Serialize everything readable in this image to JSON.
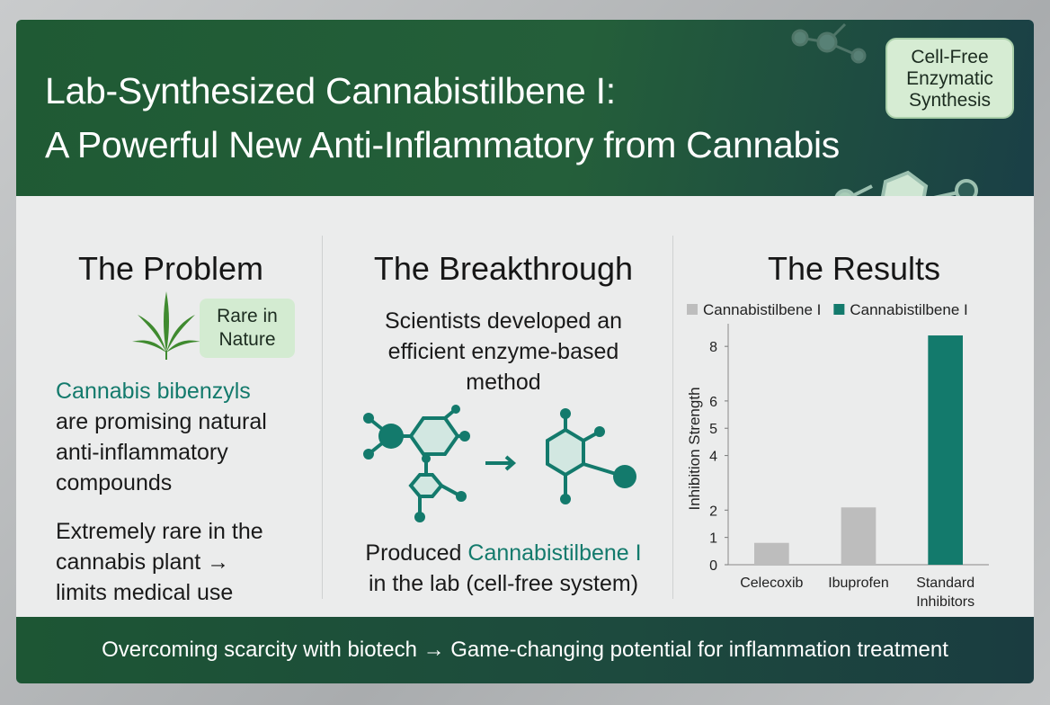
{
  "header": {
    "title_line1": "Lab-Synthesized Cannabistilbene I:",
    "title_line2": "A Powerful New Anti-Inflammatory from Cannabis",
    "badge": [
      "Cell-Free",
      "Enzymatic",
      "Synthesis"
    ]
  },
  "problem": {
    "heading": "The Problem",
    "tag": [
      "Rare in",
      "Nature"
    ],
    "highlight": "Cannabis bibenzyls",
    "lines": [
      "are promising natural",
      "anti-inflammatory",
      "compounds"
    ],
    "lines2": [
      "Extremely rare in the",
      "cannabis plant →",
      "limits medical use"
    ]
  },
  "breakthrough": {
    "heading": "The Breakthrough",
    "lines": [
      "Scientists developed an",
      "efficient enzyme-based",
      "method"
    ],
    "result_prefix": "Produced",
    "result_highlight": "Cannabistilbene I",
    "result_line2": "in the lab (cell-free system)"
  },
  "results": {
    "heading": "The Results"
  },
  "chart_data": {
    "type": "bar",
    "ylabel": "Inhibition Strength",
    "categories": [
      "Celecoxib",
      "Ibuprofen",
      "Standard Inhibitors"
    ],
    "series": [
      {
        "name": "Cannabistilbene I",
        "color": "#bdbdbd",
        "values": [
          0.8,
          2.1,
          null
        ]
      },
      {
        "name": "Cannabistilbene I",
        "color": "#137a6c",
        "values": [
          null,
          null,
          8.4
        ]
      }
    ],
    "ylim": [
      0,
      8.5
    ],
    "yticks": [
      0,
      1,
      2,
      4,
      5,
      6,
      8
    ],
    "legend": "top"
  },
  "footer": "Overcoming scarcity with biotech → Game-changing potential for inflammation treatment"
}
